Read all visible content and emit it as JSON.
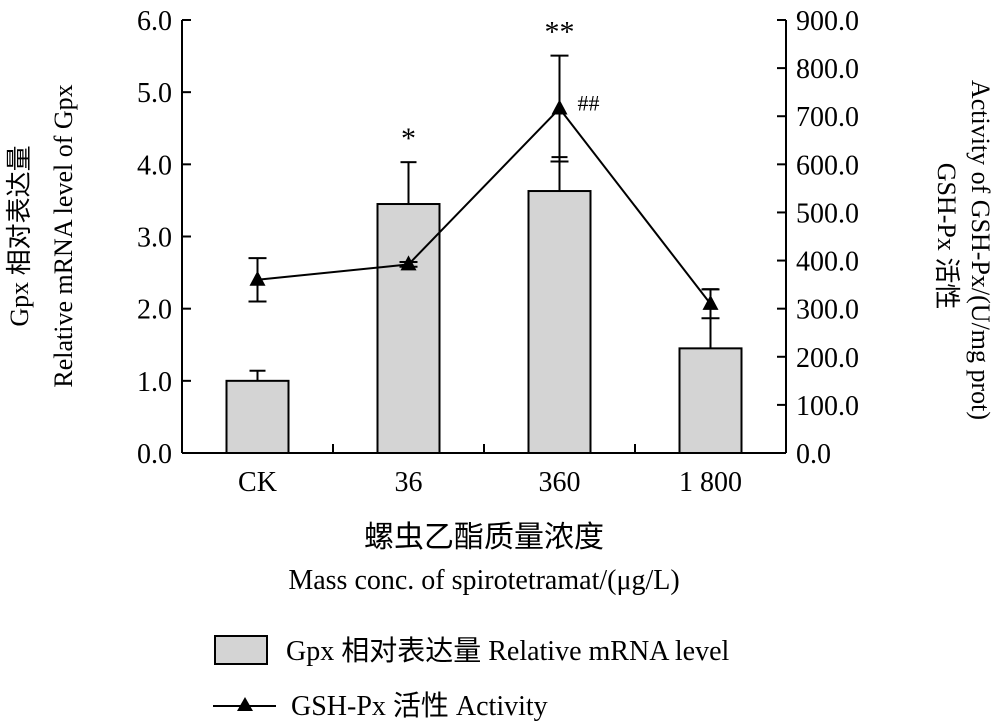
{
  "chart_data": {
    "type": "bar+line",
    "categories": [
      "CK",
      "36",
      "360",
      "1 800"
    ],
    "bar_series": {
      "name": "Gpx 相对表达量 Relative mRNA level",
      "values": [
        1.0,
        3.45,
        3.63,
        1.45
      ],
      "errors": [
        0.14,
        0.58,
        0.47,
        0.82
      ],
      "annotations": [
        "",
        "*",
        "**",
        ""
      ]
    },
    "line_series": {
      "name": "GSH-Px 活性  Activity",
      "values": [
        360,
        392,
        716,
        310
      ],
      "errors": [
        45,
        5,
        110,
        30
      ],
      "annotations": [
        "",
        "",
        "##",
        ""
      ]
    },
    "y_left": {
      "label_cn": "Gpx 相对表达量",
      "label_en": "Relative mRNA level of Gpx",
      "ylim": [
        0,
        6
      ],
      "ticks": [
        "0.0",
        "1.0",
        "2.0",
        "3.0",
        "4.0",
        "5.0",
        "6.0"
      ]
    },
    "y_right": {
      "label_cn": "GSH-Px 活性",
      "label_en": "Activity of GSH-Px/(U/mg prot)",
      "ylim": [
        0,
        900
      ],
      "ticks": [
        "0.0",
        "100.0",
        "200.0",
        "300.0",
        "400.0",
        "500.0",
        "600.0",
        "700.0",
        "800.0",
        "900.0"
      ]
    },
    "xlabel_cn": "螺虫乙酯质量浓度",
    "xlabel_en": "Mass conc. of spirotetramat/(μg/L)",
    "colors": {
      "bar_fill": "#d4d4d4",
      "stroke": "#000000"
    }
  }
}
